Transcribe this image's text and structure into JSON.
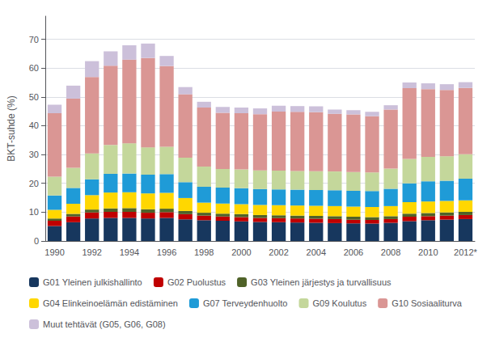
{
  "chart_data": {
    "type": "bar",
    "stacked": true,
    "ylabel": "BKT-suhde (%)",
    "categories": [
      "1990",
      null,
      "1992",
      null,
      "1994",
      null,
      "1996",
      null,
      "1998",
      null,
      "2000",
      null,
      "2002",
      null,
      "2004",
      null,
      "2006",
      null,
      "2008",
      null,
      "2010",
      null,
      "2012*"
    ],
    "series": [
      {
        "name": "G01 Yleinen julkishallinto",
        "color": "#17375E",
        "values": [
          5.2,
          6.5,
          7.8,
          8.0,
          8.0,
          7.8,
          8.0,
          7.5,
          7.2,
          7.0,
          6.8,
          6.6,
          6.5,
          6.4,
          6.3,
          6.2,
          6.1,
          6.0,
          6.3,
          6.9,
          7.2,
          7.4,
          7.6
        ]
      },
      {
        "name": "G02 Puolustus",
        "color": "#C00000",
        "values": [
          1.8,
          2.0,
          2.1,
          2.1,
          2.1,
          2.0,
          2.0,
          1.8,
          1.6,
          1.5,
          1.5,
          1.4,
          1.4,
          1.4,
          1.4,
          1.4,
          1.3,
          1.3,
          1.3,
          1.5,
          1.4,
          1.4,
          1.4
        ]
      },
      {
        "name": "G03 Yleinen järjestys ja turvallisuus",
        "color": "#4F6228",
        "values": [
          0.8,
          0.9,
          1.0,
          1.2,
          1.3,
          1.2,
          1.2,
          1.1,
          1.0,
          1.0,
          1.0,
          1.0,
          1.0,
          1.0,
          1.0,
          1.0,
          1.0,
          1.0,
          1.0,
          1.1,
          1.1,
          1.1,
          1.1
        ]
      },
      {
        "name": "G04 Elinkeinoelämän edistäminen",
        "color": "#FFD700",
        "values": [
          3.0,
          3.5,
          5.0,
          5.5,
          5.5,
          5.5,
          5.5,
          4.5,
          3.5,
          3.5,
          3.5,
          3.5,
          3.5,
          3.5,
          3.5,
          3.5,
          3.5,
          3.5,
          3.5,
          4.0,
          4.0,
          4.0,
          4.0
        ]
      },
      {
        "name": "G07 Terveydenhuolto",
        "color": "#1F9BD7",
        "values": [
          5.0,
          5.5,
          5.5,
          6.5,
          6.5,
          6.5,
          6.5,
          5.5,
          5.5,
          5.5,
          5.5,
          5.5,
          5.5,
          5.5,
          5.5,
          5.5,
          5.5,
          5.5,
          6.0,
          6.5,
          7.0,
          7.0,
          7.5
        ]
      },
      {
        "name": "G09 Koulutus",
        "color": "#C4D79B",
        "values": [
          6.5,
          7.0,
          9.0,
          10.0,
          10.5,
          9.5,
          9.5,
          8.5,
          7.0,
          6.5,
          6.5,
          6.5,
          6.5,
          6.5,
          6.5,
          6.5,
          6.5,
          6.5,
          7.0,
          8.5,
          8.5,
          8.5,
          8.5
        ]
      },
      {
        "name": "G10 Sosiaaliturva",
        "color": "#DA9694",
        "values": [
          22.0,
          24.0,
          26.5,
          27.5,
          29.0,
          31.0,
          28.0,
          22.0,
          20.5,
          19.5,
          19.5,
          19.5,
          20.5,
          20.5,
          20.5,
          20.0,
          20.0,
          19.5,
          20.5,
          24.5,
          23.5,
          23.0,
          23.0
        ]
      },
      {
        "name": "Muut tehtävät (G05, G06, G08)",
        "color": "#CCC0DA",
        "values": [
          3.0,
          4.5,
          5.5,
          5.0,
          5.0,
          5.0,
          3.5,
          2.5,
          2.0,
          2.0,
          2.0,
          2.0,
          2.0,
          2.0,
          2.0,
          1.5,
          1.5,
          1.5,
          1.5,
          2.0,
          2.0,
          2.0,
          2.0
        ]
      }
    ],
    "ylim": [
      0,
      78
    ],
    "yticks": [
      0,
      10,
      20,
      30,
      40,
      50,
      60,
      70
    ],
    "grid": true,
    "legend": "bottom"
  }
}
